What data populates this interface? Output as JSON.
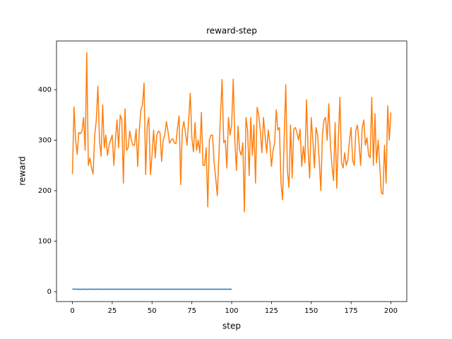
{
  "chart_data": {
    "type": "line",
    "title": "reward-step",
    "x_label": "step",
    "y_label": "reward",
    "xlim": [
      -10,
      210
    ],
    "xticks": [
      0,
      25,
      50,
      75,
      100,
      125,
      150,
      175,
      200
    ],
    "ylim": [
      -19.6,
      496.5
    ],
    "yticks": [
      0,
      100,
      200,
      300,
      400
    ],
    "grid": false,
    "x": [
      0,
      1,
      2,
      3,
      4,
      5,
      6,
      7,
      8,
      9,
      10,
      11,
      12,
      13,
      14,
      15,
      16,
      17,
      18,
      19,
      20,
      21,
      22,
      23,
      24,
      25,
      26,
      27,
      28,
      29,
      30,
      31,
      32,
      33,
      34,
      35,
      36,
      37,
      38,
      39,
      40,
      41,
      42,
      43,
      44,
      45,
      46,
      47,
      48,
      49,
      50,
      51,
      52,
      53,
      54,
      55,
      56,
      57,
      58,
      59,
      60,
      61,
      62,
      63,
      64,
      65,
      66,
      67,
      68,
      69,
      70,
      71,
      72,
      73,
      74,
      75,
      76,
      77,
      78,
      79,
      80,
      81,
      82,
      83,
      84,
      85,
      86,
      87,
      88,
      89,
      90,
      91,
      92,
      93,
      94,
      95,
      96,
      97,
      98,
      99,
      100,
      101,
      102,
      103,
      104,
      105,
      106,
      107,
      108,
      109,
      110,
      111,
      112,
      113,
      114,
      115,
      116,
      117,
      118,
      119,
      120,
      121,
      122,
      123,
      124,
      125,
      126,
      127,
      128,
      129,
      130,
      131,
      132,
      133,
      134,
      135,
      136,
      137,
      138,
      139,
      140,
      141,
      142,
      143,
      144,
      145,
      146,
      147,
      148,
      149,
      150,
      151,
      152,
      153,
      154,
      155,
      156,
      157,
      158,
      159,
      160,
      161,
      162,
      163,
      164,
      165,
      166,
      167,
      168,
      169,
      170,
      171,
      172,
      173,
      174,
      175,
      176,
      177,
      178,
      179,
      180,
      181,
      182,
      183,
      184,
      185,
      186,
      187,
      188,
      189,
      190,
      191,
      192,
      193,
      194,
      195,
      196,
      197,
      198,
      199,
      200
    ],
    "series": [
      {
        "color": "#1f77b4",
        "values": [
          5.4,
          5.0,
          4.9,
          4.8,
          4.8,
          4.7,
          4.8,
          4.9,
          4.8,
          4.7,
          4.8,
          4.8,
          4.9,
          4.8,
          4.7,
          4.8,
          4.9,
          4.8,
          4.8,
          4.7,
          4.8,
          4.9,
          4.8,
          4.7,
          4.8,
          4.8,
          4.9,
          4.8,
          4.7,
          4.8,
          4.8,
          4.9,
          4.8,
          4.7,
          4.8,
          4.8,
          4.9,
          4.8,
          4.7,
          4.8,
          4.8,
          4.9,
          4.8,
          4.7,
          4.8,
          4.9,
          4.8,
          4.7,
          4.8,
          4.8,
          4.9,
          4.8,
          4.7,
          4.8,
          4.8,
          4.9,
          4.8,
          4.7,
          4.8,
          4.8,
          4.9,
          4.8,
          4.7,
          4.8,
          4.8,
          4.9,
          4.8,
          4.7,
          4.8,
          4.8,
          4.9,
          4.8,
          4.7,
          4.8,
          4.8,
          4.9,
          4.8,
          4.7,
          4.8,
          4.8,
          4.9,
          4.8,
          4.7,
          4.8,
          4.8,
          4.9,
          4.8,
          4.7,
          4.8,
          4.8,
          4.9,
          4.8,
          4.7,
          4.8,
          4.8,
          4.9,
          4.8,
          4.7,
          4.8,
          4.8,
          4.8,
          null,
          null,
          null,
          null,
          null,
          null,
          null,
          null,
          null,
          null,
          null,
          null,
          null,
          null,
          null,
          null,
          null,
          null,
          null,
          null,
          null,
          null,
          null,
          null,
          null,
          null,
          null,
          null,
          null,
          null,
          null,
          null,
          null,
          null,
          null,
          null,
          null,
          null,
          null,
          null,
          null,
          null,
          null,
          null,
          null,
          null,
          null,
          null,
          null,
          null,
          null,
          null,
          null,
          null,
          null,
          null,
          null,
          null,
          null,
          null,
          null,
          null,
          null,
          null,
          null,
          null,
          null,
          null,
          null,
          null,
          null,
          null,
          null,
          null,
          null,
          null,
          null,
          null,
          null,
          null,
          null,
          null,
          null,
          null,
          null,
          null,
          null,
          null,
          null,
          null,
          null,
          null,
          null,
          null,
          null,
          null,
          null,
          null,
          null,
          null
        ]
      },
      {
        "color": "#ff7f0e",
        "values": [
          233,
          366,
          300,
          272,
          315,
          313,
          318,
          345,
          280,
          473,
          250,
          265,
          245,
          233,
          310,
          340,
          407,
          300,
          268,
          370,
          285,
          310,
          270,
          290,
          300,
          310,
          250,
          300,
          340,
          285,
          350,
          340,
          215,
          362,
          280,
          285,
          318,
          300,
          290,
          290,
          322,
          248,
          320,
          360,
          370,
          413,
          232,
          330,
          345,
          232,
          270,
          320,
          265,
          310,
          318,
          315,
          258,
          300,
          310,
          337,
          318,
          294,
          300,
          303,
          295,
          293,
          325,
          348,
          212,
          320,
          337,
          315,
          290,
          340,
          393,
          305,
          277,
          335,
          280,
          300,
          275,
          355,
          250,
          250,
          285,
          168,
          300,
          310,
          310,
          255,
          225,
          190,
          270,
          350,
          420,
          295,
          300,
          245,
          345,
          310,
          330,
          421,
          300,
          240,
          328,
          280,
          270,
          295,
          158,
          345,
          320,
          230,
          345,
          270,
          330,
          215,
          365,
          350,
          320,
          275,
          345,
          310,
          275,
          320,
          295,
          248,
          280,
          295,
          360,
          320,
          325,
          215,
          182,
          305,
          410,
          240,
          206,
          330,
          225,
          322,
          325,
          315,
          300,
          322,
          248,
          288,
          255,
          380,
          280,
          225,
          345,
          300,
          245,
          325,
          310,
          260,
          200,
          310,
          340,
          345,
          300,
          372,
          292,
          250,
          220,
          335,
          205,
          300,
          385,
          255,
          245,
          275,
          250,
          262,
          300,
          325,
          260,
          250,
          320,
          330,
          295,
          250,
          325,
          340,
          290,
          305,
          270,
          265,
          385,
          250,
          352,
          255,
          300,
          250,
          196,
          193,
          290,
          215,
          368,
          300,
          355
        ]
      }
    ]
  }
}
